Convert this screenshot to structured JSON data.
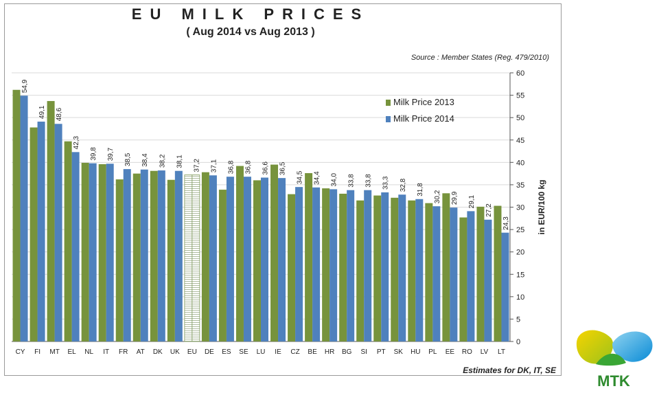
{
  "header": {
    "title": "EU MILK PRICES",
    "subtitle": "( Aug 2014   vs   Aug 2013 )",
    "source": "Source : Member States (Reg. 479/2010)",
    "note": "Estimates  for DK, IT, SE"
  },
  "logo": {
    "text": "MTK"
  },
  "colors": {
    "s2013": "#77933c",
    "s2014": "#4f81bd",
    "eu_bar": "#ffffff"
  },
  "chart_data": {
    "type": "bar",
    "ylabel": "in EUR/100 kg",
    "ylim": [
      0,
      60
    ],
    "yticks": [
      0,
      5,
      10,
      15,
      20,
      25,
      30,
      35,
      40,
      45,
      50,
      55,
      60
    ],
    "y_axis_side": "right",
    "grid": true,
    "legend_position": "top-right",
    "categories": [
      "CY",
      "FI",
      "MT",
      "EL",
      "NL",
      "IT",
      "FR",
      "AT",
      "DK",
      "UK",
      "EU",
      "DE",
      "ES",
      "SE",
      "LU",
      "IE",
      "CZ",
      "BE",
      "HR",
      "BG",
      "SI",
      "PT",
      "SK",
      "HU",
      "PL",
      "EE",
      "RO",
      "LV",
      "LT"
    ],
    "series": [
      {
        "name": "Milk Price 2013",
        "values": [
          56.2,
          47.8,
          53.7,
          44.7,
          39.9,
          39.6,
          36.2,
          37.5,
          38.1,
          36.1,
          37.2,
          37.8,
          33.9,
          39.2,
          36.0,
          39.5,
          32.9,
          37.6,
          34.2,
          33.0,
          31.5,
          32.6,
          32.1,
          31.5,
          30.9,
          33.1,
          27.7,
          30.1,
          30.3
        ]
      },
      {
        "name": "Milk Price 2014",
        "values": [
          54.9,
          49.1,
          48.6,
          42.3,
          39.8,
          39.7,
          38.5,
          38.4,
          38.2,
          38.1,
          37.2,
          37.1,
          36.8,
          36.8,
          36.6,
          36.5,
          34.5,
          34.4,
          34.0,
          33.8,
          33.8,
          33.3,
          32.8,
          31.8,
          30.2,
          29.9,
          29.1,
          27.2,
          24.3
        ],
        "labels": [
          "54,9",
          "49,1",
          "48,6",
          "42,3",
          "39,8",
          "39,7",
          "38,5",
          "38,4",
          "38,2",
          "38,1",
          "37,2",
          "37,1",
          "36,8",
          "36,8",
          "36,6",
          "36,5",
          "34,5",
          "34,4",
          "34,0",
          "33,8",
          "33,8",
          "33,3",
          "32,8",
          "31,8",
          "30,2",
          "29,9",
          "29,1",
          "27,2",
          "24,3"
        ]
      }
    ]
  }
}
